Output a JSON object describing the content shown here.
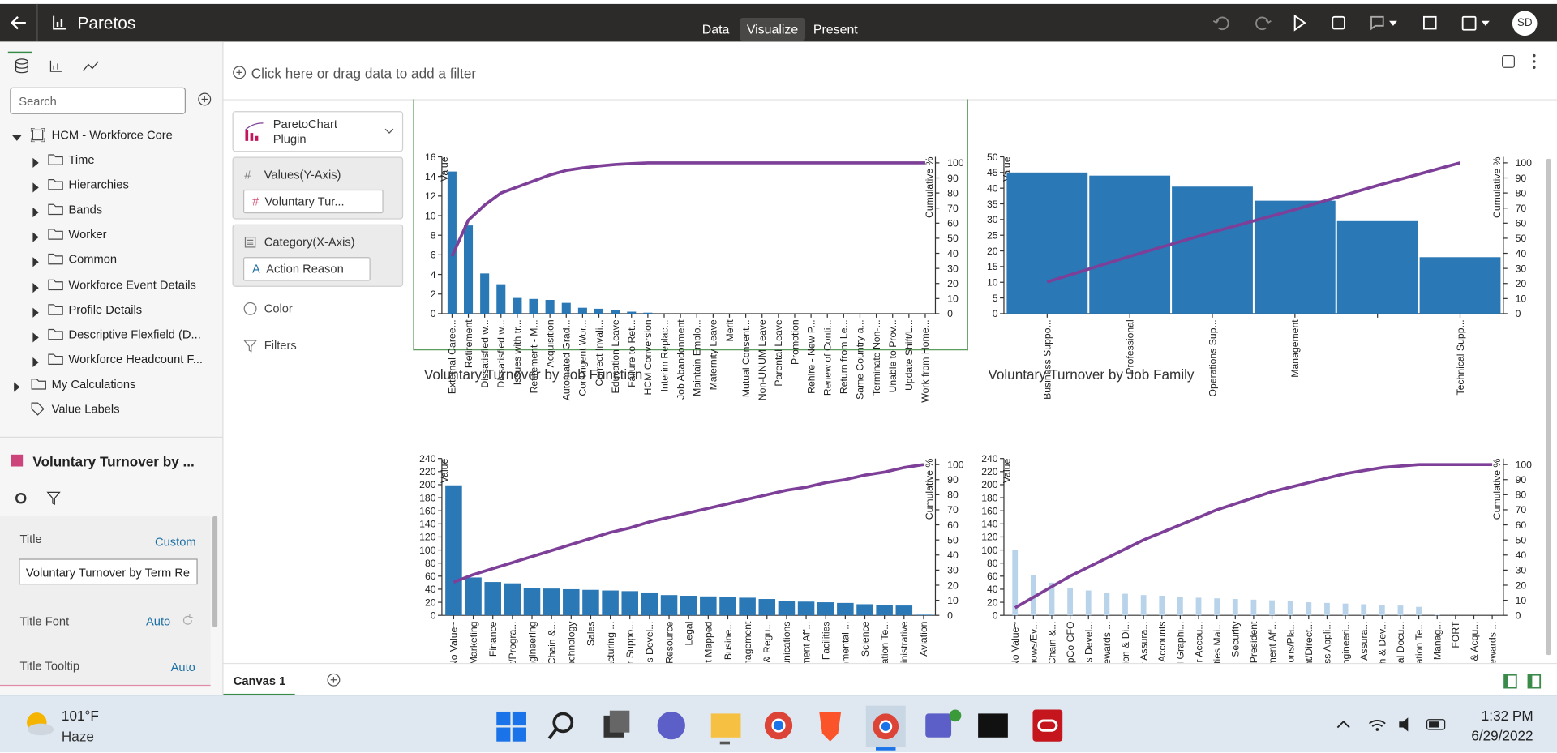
{
  "header": {
    "title": "Paretos",
    "tabs": [
      "Data",
      "Visualize",
      "Present"
    ],
    "user": "SD"
  },
  "data_panel": {
    "search": "Search",
    "subject_area": "HCM - Workforce Core",
    "folders": [
      "Time",
      "Hierarchies",
      "Bands",
      "Worker",
      "Common",
      "Workforce Event Details",
      "Profile Details",
      "Descriptive Flexfield (D...",
      "Workforce Headcount F..."
    ],
    "extras": [
      "My Calculations",
      "Value Labels"
    ]
  },
  "properties": {
    "heading": "Voluntary Turnover by ...",
    "rows": [
      {
        "label": "Title",
        "value": "Custom"
      },
      {
        "label": "Title Font",
        "value": "Auto"
      },
      {
        "label": "Title Tooltip",
        "value": "Auto"
      }
    ],
    "title_input": "Voluntary Turnover by Term Re"
  },
  "grammar": {
    "plugin": "ParetoChart Plugin",
    "values_label": "Values(Y-Axis)",
    "values_item": "Voluntary Tur...",
    "category_label": "Category(X-Axis)",
    "category_item": "Action Reason",
    "color": "Color",
    "filters": "Filters"
  },
  "filter_bar": "Click here or drag data to add a filter",
  "canvas_tab": "Canvas 1",
  "taskbar": {
    "temperature": "101°F",
    "weather": "Haze",
    "time": "1:32 PM",
    "date": "6/29/2022"
  },
  "canvas": {
    "charts": [
      {
        "type": "pareto",
        "title": "Voluntary Turnover by Job Function",
        "y_label": "Value",
        "y2_label": "Cumulative %",
        "categories": [
          "External Caree...",
          "Retirement",
          "Dissatisfied w...",
          "Dissatisfied w...",
          "Issues with tr...",
          "Retirement - M...",
          "Acquisition",
          "Automated Grad...",
          "Contingent Wor...",
          "Correct Invali...",
          "Education Leave",
          "Failure to Ret...",
          "HCM Conversion",
          "Interim Replac...",
          "Job Abandonment",
          "Maintain Emplo...",
          "Maternity Leave",
          "Merit",
          "Mutual Consent...",
          "Non-UNUM Leave",
          "Parental Leave",
          "Promotion",
          "Rehire - New P...",
          "Renew of Conti...",
          "Return from Le...",
          "Same Country a...",
          "Terminate Non-...",
          "Unable to Prov...",
          "Update Shift/L...",
          "Work from Home..."
        ],
        "series": [
          {
            "color": "#2a78b5",
            "values": [
              14.5,
              9,
              4.1,
              3,
              1.6,
              1.5,
              1.4,
              1.1,
              0.6,
              0.5,
              0.4,
              0.2,
              0.1,
              0,
              0,
              0,
              0,
              0,
              0,
              0,
              0,
              0,
              0,
              0,
              0,
              0,
              0,
              0,
              0,
              0
            ]
          },
          {
            "color": "#7d3f98",
            "axis": "y2",
            "values": [
              38,
              62,
              72,
              80,
              84,
              88,
              92,
              95,
              96.6,
              97.9,
              98.9,
              99.5,
              100,
              100,
              100,
              100,
              100,
              100,
              100,
              100,
              100,
              100,
              100,
              100,
              100,
              100,
              100,
              100,
              100,
              100
            ]
          }
        ],
        "ylim": [
          0,
          16
        ],
        "yticks": [
          0,
          2,
          4,
          6,
          8,
          10,
          12,
          14,
          16
        ],
        "y2lim": [
          0,
          104
        ],
        "y2ticks": [
          0,
          10,
          20,
          30,
          40,
          50,
          60,
          70,
          80,
          90,
          100
        ]
      },
      {
        "type": "pareto",
        "title": "Voluntary Turnover by Job Family",
        "y_label": "Value",
        "y2_label": "Cumulative %",
        "categories": [
          "Business Suppo...",
          "Professional",
          "Operations Sup...",
          "Management",
          null,
          "Technical Supp..."
        ],
        "series": [
          {
            "color": "#2a78b5",
            "values": [
              45,
              44,
              40.5,
              36,
              29.5,
              18
            ]
          },
          {
            "color": "#7d3f98",
            "axis": "y2",
            "values": [
              21,
              38,
              54,
              69,
              85,
              100
            ]
          }
        ],
        "ylim": [
          0,
          50
        ],
        "yticks": [
          0,
          5,
          10,
          15,
          20,
          25,
          30,
          35,
          40,
          45,
          50
        ],
        "y2lim": [
          0,
          104
        ],
        "y2ticks": [
          0,
          10,
          20,
          30,
          40,
          50,
          60,
          70,
          80,
          90,
          100
        ]
      },
      {
        "type": "pareto",
        "y_label": "Value",
        "y2_label": "Cumulative %",
        "categories": [
          "~No Value~",
          "Marketing",
          "Finance",
          "Project/Progra...",
          "Engineering",
          "Supply Chain &...",
          "Data Technology",
          "Sales",
          "Manufacturing ...",
          "Customer Suppo...",
          "Business Devel...",
          "Human Resource",
          "Legal",
          "Not Mapped",
          "Fortive Busine...",
          "Management",
          "Quality & Regu...",
          "Communications",
          "Government Aff...",
          "Facilities",
          "Environmental ...",
          "Science",
          "Information Te...",
          "Administrative",
          "Aviation"
        ],
        "series": [
          {
            "color": "#2a78b5",
            "values": [
              199,
              58,
              51,
              49,
              42,
              41,
              40,
              39,
              38,
              37,
              35,
              31,
              30,
              29,
              28,
              27,
              25,
              22,
              21,
              20,
              19,
              17,
              16,
              15,
              1
            ]
          },
          {
            "color": "#7d3f98",
            "axis": "y2",
            "values": [
              22,
              27,
              31,
              35,
              39,
              43,
              47,
              51,
              55,
              58,
              62,
              65,
              68,
              71,
              74,
              77,
              80,
              83,
              85,
              88,
              90,
              93,
              95,
              98,
              100
            ]
          }
        ],
        "ylim": [
          0,
          240
        ],
        "yticks": [
          0,
          20,
          40,
          60,
          80,
          100,
          120,
          140,
          160,
          180,
          200,
          220,
          240
        ],
        "y2lim": [
          0,
          104
        ],
        "y2ticks": [
          0,
          10,
          20,
          30,
          40,
          50,
          60,
          70,
          80,
          90,
          100
        ]
      },
      {
        "type": "pareto",
        "y_label": "Value",
        "y2_label": "Cumulative %",
        "categories": [
          "~No Value~",
          "Trade Shows/Ev...",
          "Supply Chain &...",
          "OpCo CFO",
          "Business Devel...",
          "Total Rewards ...",
          "Inclusion & Di...",
          "Quality Assura...",
          "Key Accounts",
          "Digital Graphi...",
          "Customer Accou...",
          "Facilities Mai...",
          "Security",
          "OpCo President",
          "Government Aff...",
          "Operations/Pla...",
          "Account/Direct...",
          "Business Appli...",
          "Test Engineeri...",
          "Quality Assura...",
          "Research & Dev...",
          "Technical Docu...",
          "Information Te...",
          "Aviation Manag...",
          "FORT",
          "Mergers & Acqu...",
          "Total Rewards ..."
        ],
        "series": [
          {
            "color": "#b9d4ea",
            "values": [
              100,
              62,
              50,
              42,
              38,
              35,
              33,
              31,
              30,
              28,
              27,
              26,
              25,
              24,
              23,
              22,
              20,
              19,
              18,
              17,
              16,
              15,
              13,
              1,
              0,
              0,
              0
            ]
          },
          {
            "color": "#7d3f98",
            "axis": "y2",
            "values": [
              5,
              12,
              19,
              26,
              32,
              38,
              44,
              50,
              55,
              60,
              65,
              70,
              74,
              78,
              82,
              85,
              88,
              91,
              94,
              96,
              98,
              99,
              100,
              100,
              100,
              100,
              100
            ]
          }
        ],
        "ylim": [
          0,
          240
        ],
        "yticks": [
          0,
          20,
          40,
          60,
          80,
          100,
          120,
          140,
          160,
          180,
          200,
          220,
          240
        ],
        "y2lim": [
          0,
          104
        ],
        "y2ticks": [
          0,
          10,
          20,
          30,
          40,
          50,
          60,
          70,
          80,
          90,
          100
        ]
      }
    ]
  }
}
